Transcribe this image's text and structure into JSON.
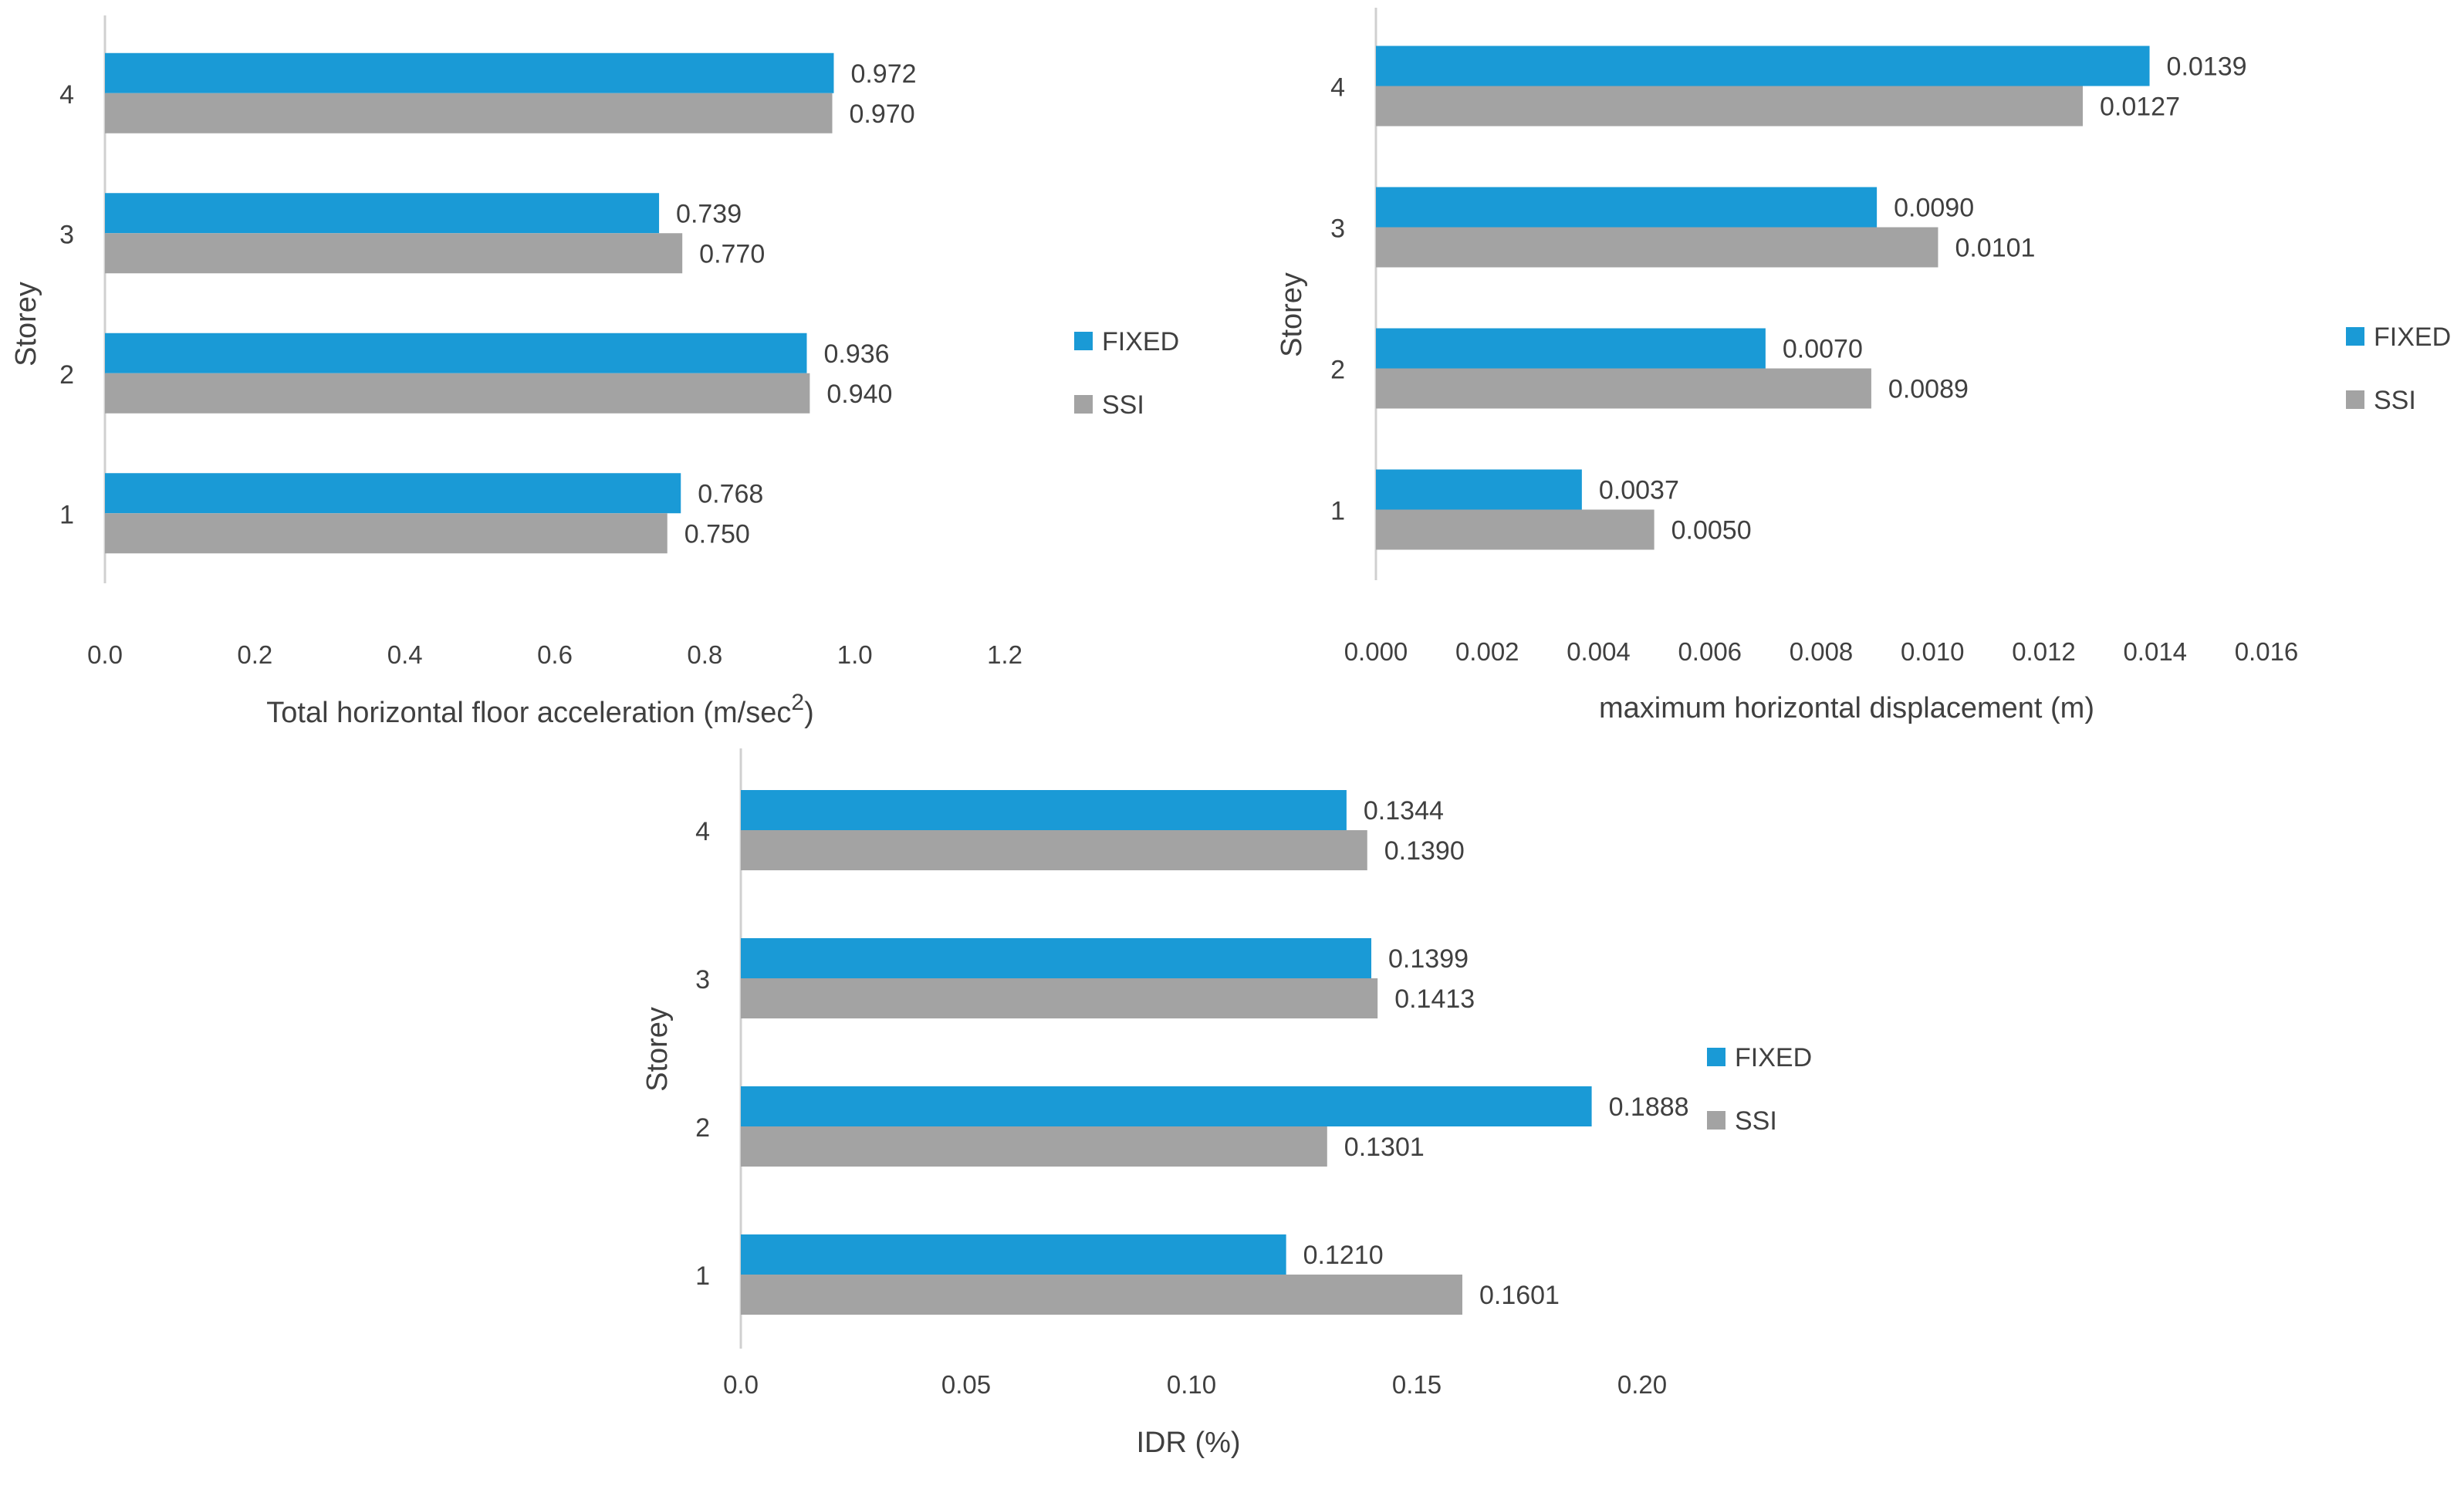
{
  "colors": {
    "fixed": "#1a9ad6",
    "ssi": "#a3a3a3",
    "axis": "#d0d0d0",
    "text": "#404040"
  },
  "chart_data": [
    {
      "type": "bar",
      "orientation": "horizontal",
      "categories": [
        "1",
        "2",
        "3",
        "4"
      ],
      "series": [
        {
          "name": "FIXED",
          "values": [
            0.768,
            0.936,
            0.739,
            0.972
          ],
          "labels": [
            "0.768",
            "0.936",
            "0.739",
            "0.972"
          ]
        },
        {
          "name": "SSI",
          "values": [
            0.75,
            0.94,
            0.77,
            0.97
          ],
          "labels": [
            "0.750",
            "0.940",
            "0.770",
            "0.970"
          ]
        }
      ],
      "ticks": [
        "0.0",
        "0.2",
        "0.4",
        "0.6",
        "0.8",
        "1.0",
        "1.2"
      ],
      "xlim": [
        0,
        1.2
      ],
      "xlabel": "Total horizontal floor acceleration (m/sec",
      "xlabel_sup": "2",
      "xlabel_suffix": ")",
      "ylabel": "Storey",
      "legend": [
        "FIXED",
        "SSI"
      ],
      "legend_position": "right"
    },
    {
      "type": "bar",
      "orientation": "horizontal",
      "categories": [
        "1",
        "2",
        "3",
        "4"
      ],
      "series": [
        {
          "name": "FIXED",
          "values": [
            0.0037,
            0.007,
            0.009,
            0.0139
          ],
          "labels": [
            "0.0037",
            "0.0070",
            "0.0090",
            "0.0139"
          ]
        },
        {
          "name": "SSI",
          "values": [
            0.005,
            0.0089,
            0.0101,
            0.0127
          ],
          "labels": [
            "0.0050",
            "0.0089",
            "0.0101",
            "0.0127"
          ]
        }
      ],
      "ticks": [
        "0.000",
        "0.002",
        "0.004",
        "0.006",
        "0.008",
        "0.010",
        "0.012",
        "0.014",
        "0.016"
      ],
      "xlim": [
        0,
        0.016
      ],
      "xlabel": "maximum horizontal displacement (m)",
      "xlabel_sup": "",
      "xlabel_suffix": "",
      "ylabel": "Storey",
      "legend": [
        "FIXED",
        "SSI"
      ],
      "legend_position": "right"
    },
    {
      "type": "bar",
      "orientation": "horizontal",
      "categories": [
        "1",
        "2",
        "3",
        "4"
      ],
      "series": [
        {
          "name": "FIXED",
          "values": [
            0.121,
            0.1888,
            0.1399,
            0.1344
          ],
          "labels": [
            "0.1210",
            "0.1888",
            "0.1399",
            "0.1344"
          ]
        },
        {
          "name": "SSI",
          "values": [
            0.1601,
            0.1301,
            0.1413,
            0.139
          ],
          "labels": [
            "0.1601",
            "0.1301",
            "0.1413",
            "0.1390"
          ]
        }
      ],
      "ticks": [
        "0.0",
        "0.05",
        "0.10",
        "0.15",
        "0.20"
      ],
      "xlim": [
        0,
        0.2
      ],
      "xlabel": "IDR (%)",
      "xlabel_sup": "",
      "xlabel_suffix": "",
      "ylabel": "Storey",
      "legend": [
        "FIXED",
        "SSI"
      ],
      "legend_position": "right"
    }
  ]
}
